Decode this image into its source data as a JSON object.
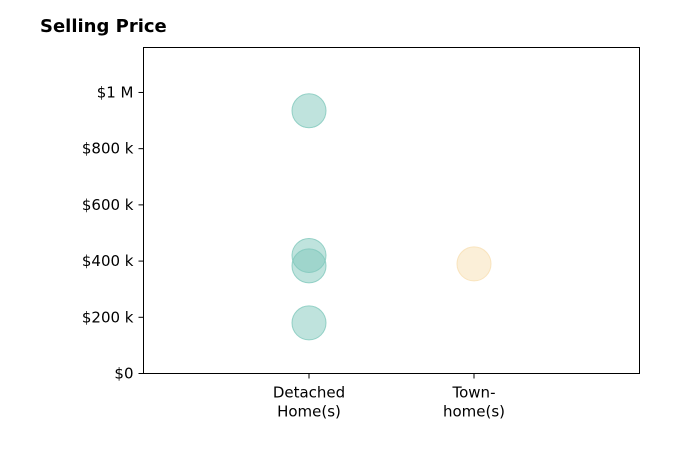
{
  "chart_data": {
    "type": "scatter",
    "title": "Selling Price",
    "xlabel": "",
    "ylabel": "",
    "categories": [
      [
        "Detached",
        "Home(s)"
      ],
      [
        "Town-",
        "home(s)"
      ]
    ],
    "ylim": [
      0,
      1160000
    ],
    "yticks": [
      0,
      200000,
      400000,
      600000,
      800000,
      1000000
    ],
    "ytick_labels": [
      "$0",
      "$200 k",
      "$400 k",
      "$600 k",
      "$800 k",
      "$1 M"
    ],
    "grid": false,
    "legend": "none",
    "series": [
      {
        "category_index": 0,
        "color": "#7fc8bb",
        "values": [
          935000,
          420000,
          383000,
          180000
        ]
      },
      {
        "category_index": 1,
        "color": "#f7dfb2",
        "values": [
          390000
        ]
      }
    ]
  }
}
